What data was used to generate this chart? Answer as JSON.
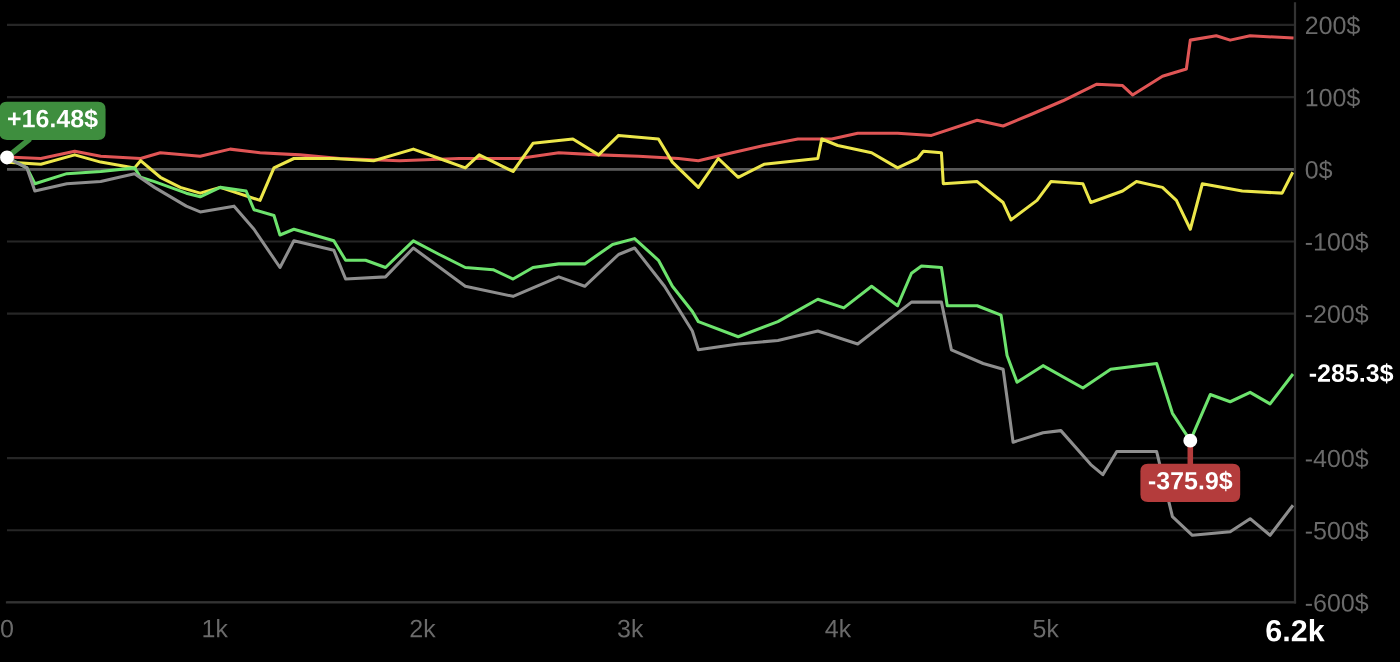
{
  "chart_data": {
    "type": "line",
    "xlim": [
      0,
      6200
    ],
    "ylim": [
      -600,
      230
    ],
    "xticks": [
      0,
      {
        "value": 1000,
        "label": "1k"
      },
      {
        "value": 2000,
        "label": "2k"
      },
      {
        "value": 3000,
        "label": "3k"
      },
      {
        "value": 4000,
        "label": "4k"
      },
      {
        "value": 5000,
        "label": "5k"
      },
      {
        "value": 6200,
        "label": "6.2k"
      }
    ],
    "yticks": [
      {
        "value": -600,
        "label": "-600$"
      },
      {
        "value": -500,
        "label": "-500$"
      },
      {
        "value": -400,
        "label": "-400$"
      },
      {
        "value": -200,
        "label": "-200$"
      },
      {
        "value": -100,
        "label": "-100$"
      },
      {
        "value": 0,
        "label": "0$"
      },
      {
        "value": 100,
        "label": "100$"
      },
      {
        "value": 200,
        "label": "200$"
      }
    ],
    "grid": "y",
    "ref_lines": [
      {
        "axis": "y",
        "value": 0,
        "color": "#5a5a5a"
      }
    ],
    "annotations": [
      {
        "text": "+16.48$",
        "x": 0,
        "y": 16.48
      },
      {
        "text": "-375.9$",
        "x": 5696,
        "y": -375.9
      },
      {
        "text": "-285.3$",
        "x": 6186,
        "y": -285.3
      }
    ],
    "series": [
      {
        "color": "#e05555",
        "x": [
          0,
          163,
          326,
          451,
          643,
          738,
          930,
          1074,
          1218,
          1410,
          1602,
          1889,
          2177,
          2465,
          2656,
          2848,
          3040,
          3232,
          3328,
          3491,
          3644,
          3807,
          3970,
          4095,
          4287,
          4450,
          4670,
          4795,
          4929,
          5083,
          5246,
          5370,
          5418,
          5562,
          5677,
          5696,
          5821,
          5888,
          5984,
          6186
        ],
        "values": [
          17,
          15,
          25,
          18,
          15,
          23,
          18,
          28,
          23,
          20,
          15,
          12,
          15,
          15,
          23,
          20,
          18,
          15,
          12,
          23,
          33,
          42,
          42,
          50,
          50,
          47,
          68,
          60,
          76,
          95,
          118,
          116,
          103,
          129,
          139,
          179,
          185,
          179,
          185,
          182
        ]
      },
      {
        "color": "#ece64a",
        "x": [
          0,
          163,
          326,
          451,
          614,
          643,
          738,
          834,
          930,
          1026,
          1218,
          1285,
          1381,
          1573,
          1765,
          1956,
          2081,
          2206,
          2273,
          2436,
          2532,
          2724,
          2848,
          2944,
          3136,
          3203,
          3328,
          3424,
          3520,
          3644,
          3903,
          3922,
          3999,
          4162,
          4287,
          4383,
          4411,
          4498,
          4507,
          4670,
          4795,
          4833,
          4958,
          5025,
          5179,
          5217,
          5370,
          5437,
          5562,
          5629,
          5696,
          5754,
          5946,
          6138,
          6186
        ],
        "values": [
          10,
          7,
          20,
          10,
          2,
          12,
          -11,
          -25,
          -33,
          -25,
          -43,
          2,
          15,
          15,
          12,
          28,
          15,
          2,
          20,
          -3,
          36,
          42,
          20,
          47,
          42,
          10,
          -25,
          15,
          -11,
          7,
          15,
          42,
          33,
          23,
          2,
          15,
          25,
          23,
          -20,
          -17,
          -46,
          -70,
          -43,
          -17,
          -20,
          -46,
          -30,
          -17,
          -25,
          -43,
          -83,
          -20,
          -30,
          -33,
          -6
        ]
      },
      {
        "color": "#6de36d",
        "x": [
          0,
          96,
          134,
          288,
          451,
          614,
          643,
          710,
          863,
          930,
          1026,
          1151,
          1189,
          1285,
          1314,
          1381,
          1573,
          1630,
          1726,
          1822,
          1956,
          2081,
          2206,
          2340,
          2436,
          2532,
          2656,
          2781,
          2915,
          3021,
          3136,
          3203,
          3299,
          3328,
          3520,
          3711,
          3903,
          4028,
          4162,
          4287,
          4354,
          4402,
          4498,
          4526,
          4670,
          4785,
          4814,
          4862,
          4987,
          5179,
          5313,
          5534,
          5610,
          5696,
          5792,
          5888,
          5984,
          6080,
          6186
        ],
        "values": [
          16.48,
          2,
          -20,
          -6,
          -3,
          2,
          -11,
          -17,
          -33,
          -38,
          -25,
          -30,
          -56,
          -64,
          -91,
          -83,
          -99,
          -126,
          -126,
          -136,
          -99,
          -118,
          -136,
          -139,
          -152,
          -136,
          -131,
          -131,
          -104,
          -96,
          -126,
          -162,
          -197,
          -211,
          -232,
          -211,
          -180,
          -192,
          -162,
          -189,
          -144,
          -134,
          -136,
          -189,
          -189,
          -202,
          -258,
          -295,
          -272,
          -303,
          -277,
          -269,
          -338,
          -375.9,
          -312,
          -322,
          -309,
          -325,
          -285.3
        ]
      },
      {
        "color": "#8e8e8e",
        "x": [
          0,
          96,
          134,
          288,
          451,
          614,
          710,
          863,
          930,
          1093,
          1189,
          1314,
          1381,
          1573,
          1630,
          1822,
          1956,
          2206,
          2436,
          2656,
          2781,
          2944,
          3021,
          3165,
          3299,
          3328,
          3520,
          3711,
          3903,
          4095,
          4354,
          4498,
          4546,
          4699,
          4795,
          4843,
          4987,
          5073,
          5217,
          5275,
          5342,
          5534,
          5610,
          5706,
          5888,
          5984,
          6080,
          6186
        ],
        "values": [
          16,
          2,
          -30,
          -20,
          -17,
          -6,
          -25,
          -51,
          -59,
          -51,
          -83,
          -136,
          -99,
          -112,
          -152,
          -149,
          -109,
          -162,
          -176,
          -149,
          -162,
          -118,
          -109,
          -162,
          -224,
          -250,
          -242,
          -237,
          -224,
          -242,
          -184,
          -184,
          -250,
          -269,
          -277,
          -378,
          -365,
          -362,
          -409,
          -423,
          -391,
          -391,
          -481,
          -507,
          -502,
          -484,
          -507,
          -467
        ]
      }
    ]
  }
}
